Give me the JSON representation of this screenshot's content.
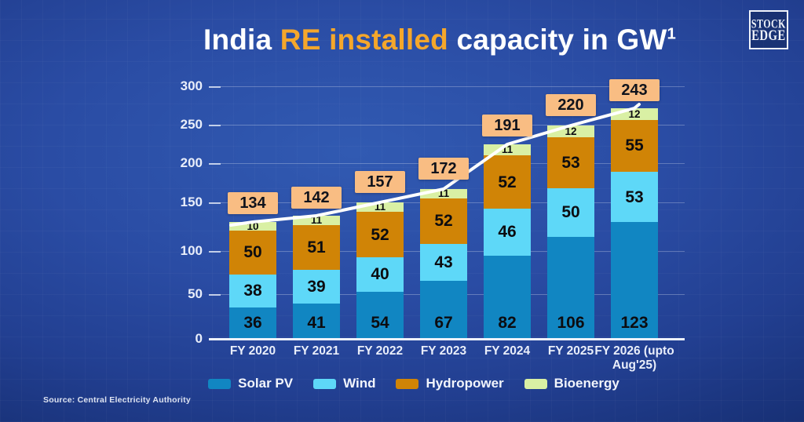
{
  "title": {
    "prefix": "India ",
    "highlight": "RE installed",
    "suffix": " capacity in GW",
    "superscript": "1"
  },
  "logo": {
    "line1": "STOCK",
    "line2": "EDGE"
  },
  "source_note": "Source: Central Electricity Authority",
  "colors": {
    "background_center": "#2f55ad",
    "background_edge": "#102047",
    "title_highlight": "#f5a72b",
    "total_box": "#f9bd83",
    "trend_line": "#ffffff",
    "axis_text": "#e9eefa",
    "value_text": "#0c0c10"
  },
  "chart_data": {
    "type": "bar",
    "stacked": true,
    "title": "India RE installed capacity in GW",
    "categories": [
      "FY 2020",
      "FY 2021",
      "FY 2022",
      "FY 2023",
      "FY 2024",
      "FY 2025",
      "FY 2026 (upto Aug'25)"
    ],
    "xtick_labels": [
      "FY 2020",
      "FY 2021",
      "FY 2022",
      "FY 2023",
      "FY 2024",
      "FY 2025",
      "FY 2026 (upto\nAug'25)"
    ],
    "series": [
      {
        "name": "Solar PV",
        "color": "#1186c2",
        "values": [
          36,
          41,
          54,
          67,
          82,
          106,
          123
        ]
      },
      {
        "name": "Wind",
        "color": "#5ed8f8",
        "values": [
          38,
          39,
          40,
          43,
          46,
          50,
          53
        ]
      },
      {
        "name": "Hydropower",
        "color": "#d08406",
        "values": [
          50,
          51,
          52,
          52,
          52,
          53,
          55
        ]
      },
      {
        "name": "Bioenergy",
        "color": "#d9f0a4",
        "values": [
          10,
          11,
          11,
          11,
          11,
          12,
          12
        ]
      }
    ],
    "totals": [
      134,
      142,
      157,
      172,
      191,
      220,
      243
    ],
    "trend_line_over_totals": true,
    "yticks": [
      0,
      50,
      100,
      150,
      200,
      250,
      300
    ],
    "ylim": [
      0,
      300
    ],
    "grid": true,
    "legend_position": "bottom",
    "xlabel": "",
    "ylabel": ""
  }
}
